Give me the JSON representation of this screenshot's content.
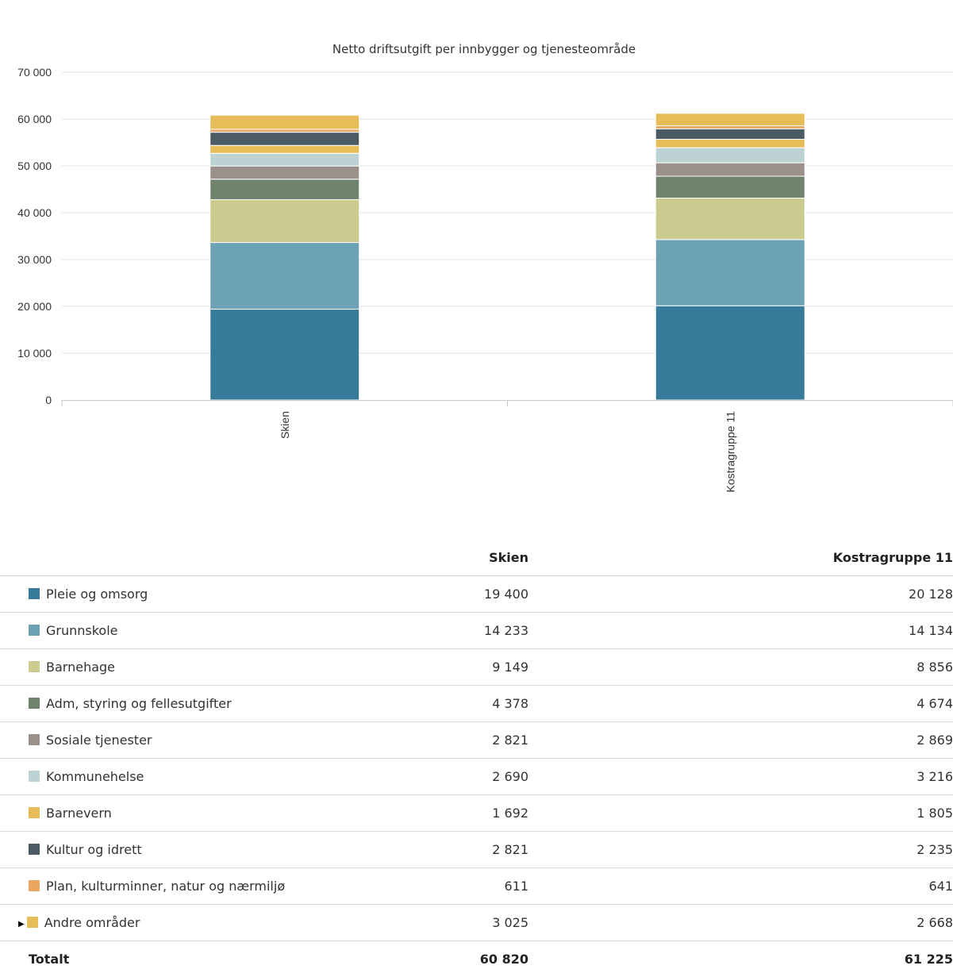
{
  "chart_data": {
    "type": "bar",
    "stacked": true,
    "title": "Netto driftsutgift per innbygger og tjenesteområde",
    "categories": [
      "Skien",
      "Kostragruppe 11"
    ],
    "ylim": [
      0,
      70000
    ],
    "yticks": [
      "0",
      "10 000",
      "20 000",
      "30 000",
      "40 000",
      "50 000",
      "60 000",
      "70 000"
    ],
    "ytick_values": [
      0,
      10000,
      20000,
      30000,
      40000,
      50000,
      60000,
      70000
    ],
    "grid": true,
    "series": [
      {
        "name": "Pleie og omsorg",
        "color": "#377a99",
        "values": [
          19400,
          20128
        ],
        "display": [
          "19 400",
          "20 128"
        ]
      },
      {
        "name": "Grunnskole",
        "color": "#6da1b4",
        "values": [
          14233,
          14134
        ],
        "display": [
          "14 233",
          "14 134"
        ]
      },
      {
        "name": "Barnehage",
        "color": "#cccb8f",
        "values": [
          9149,
          8856
        ],
        "display": [
          "9 149",
          "8 856"
        ]
      },
      {
        "name": "Adm, styring og fellesutgifter",
        "color": "#6f836c",
        "values": [
          4378,
          4674
        ],
        "display": [
          "4 378",
          "4 674"
        ]
      },
      {
        "name": "Sosiale tjenester",
        "color": "#9c918a",
        "values": [
          2821,
          2869
        ],
        "display": [
          "2 821",
          "2 869"
        ]
      },
      {
        "name": "Kommunehelse",
        "color": "#bdd2d3",
        "values": [
          2690,
          3216
        ],
        "display": [
          "2 690",
          "3 216"
        ]
      },
      {
        "name": "Barnevern",
        "color": "#e7bd5a",
        "values": [
          1692,
          1805
        ],
        "display": [
          "1 692",
          "1 805"
        ]
      },
      {
        "name": "Kultur og idrett",
        "color": "#4b5b64",
        "values": [
          2821,
          2235
        ],
        "display": [
          "2 821",
          "2 235"
        ]
      },
      {
        "name": "Plan, kulturminner, natur og nærmiljø",
        "color": "#eba65f",
        "values": [
          611,
          641
        ],
        "display": [
          "611",
          "641"
        ]
      },
      {
        "name": "Andre områder",
        "color": "#e7bd5a",
        "values": [
          3025,
          2668
        ],
        "display": [
          "3 025",
          "2 668"
        ],
        "expandable": true
      }
    ],
    "totals": {
      "label": "Totalt",
      "values": [
        60820,
        61225
      ],
      "display": [
        "60 820",
        "61 225"
      ]
    }
  },
  "table": {
    "header": {
      "col1": "Skien",
      "col2": "Kostragruppe 11"
    },
    "expander_glyph": "▶"
  }
}
